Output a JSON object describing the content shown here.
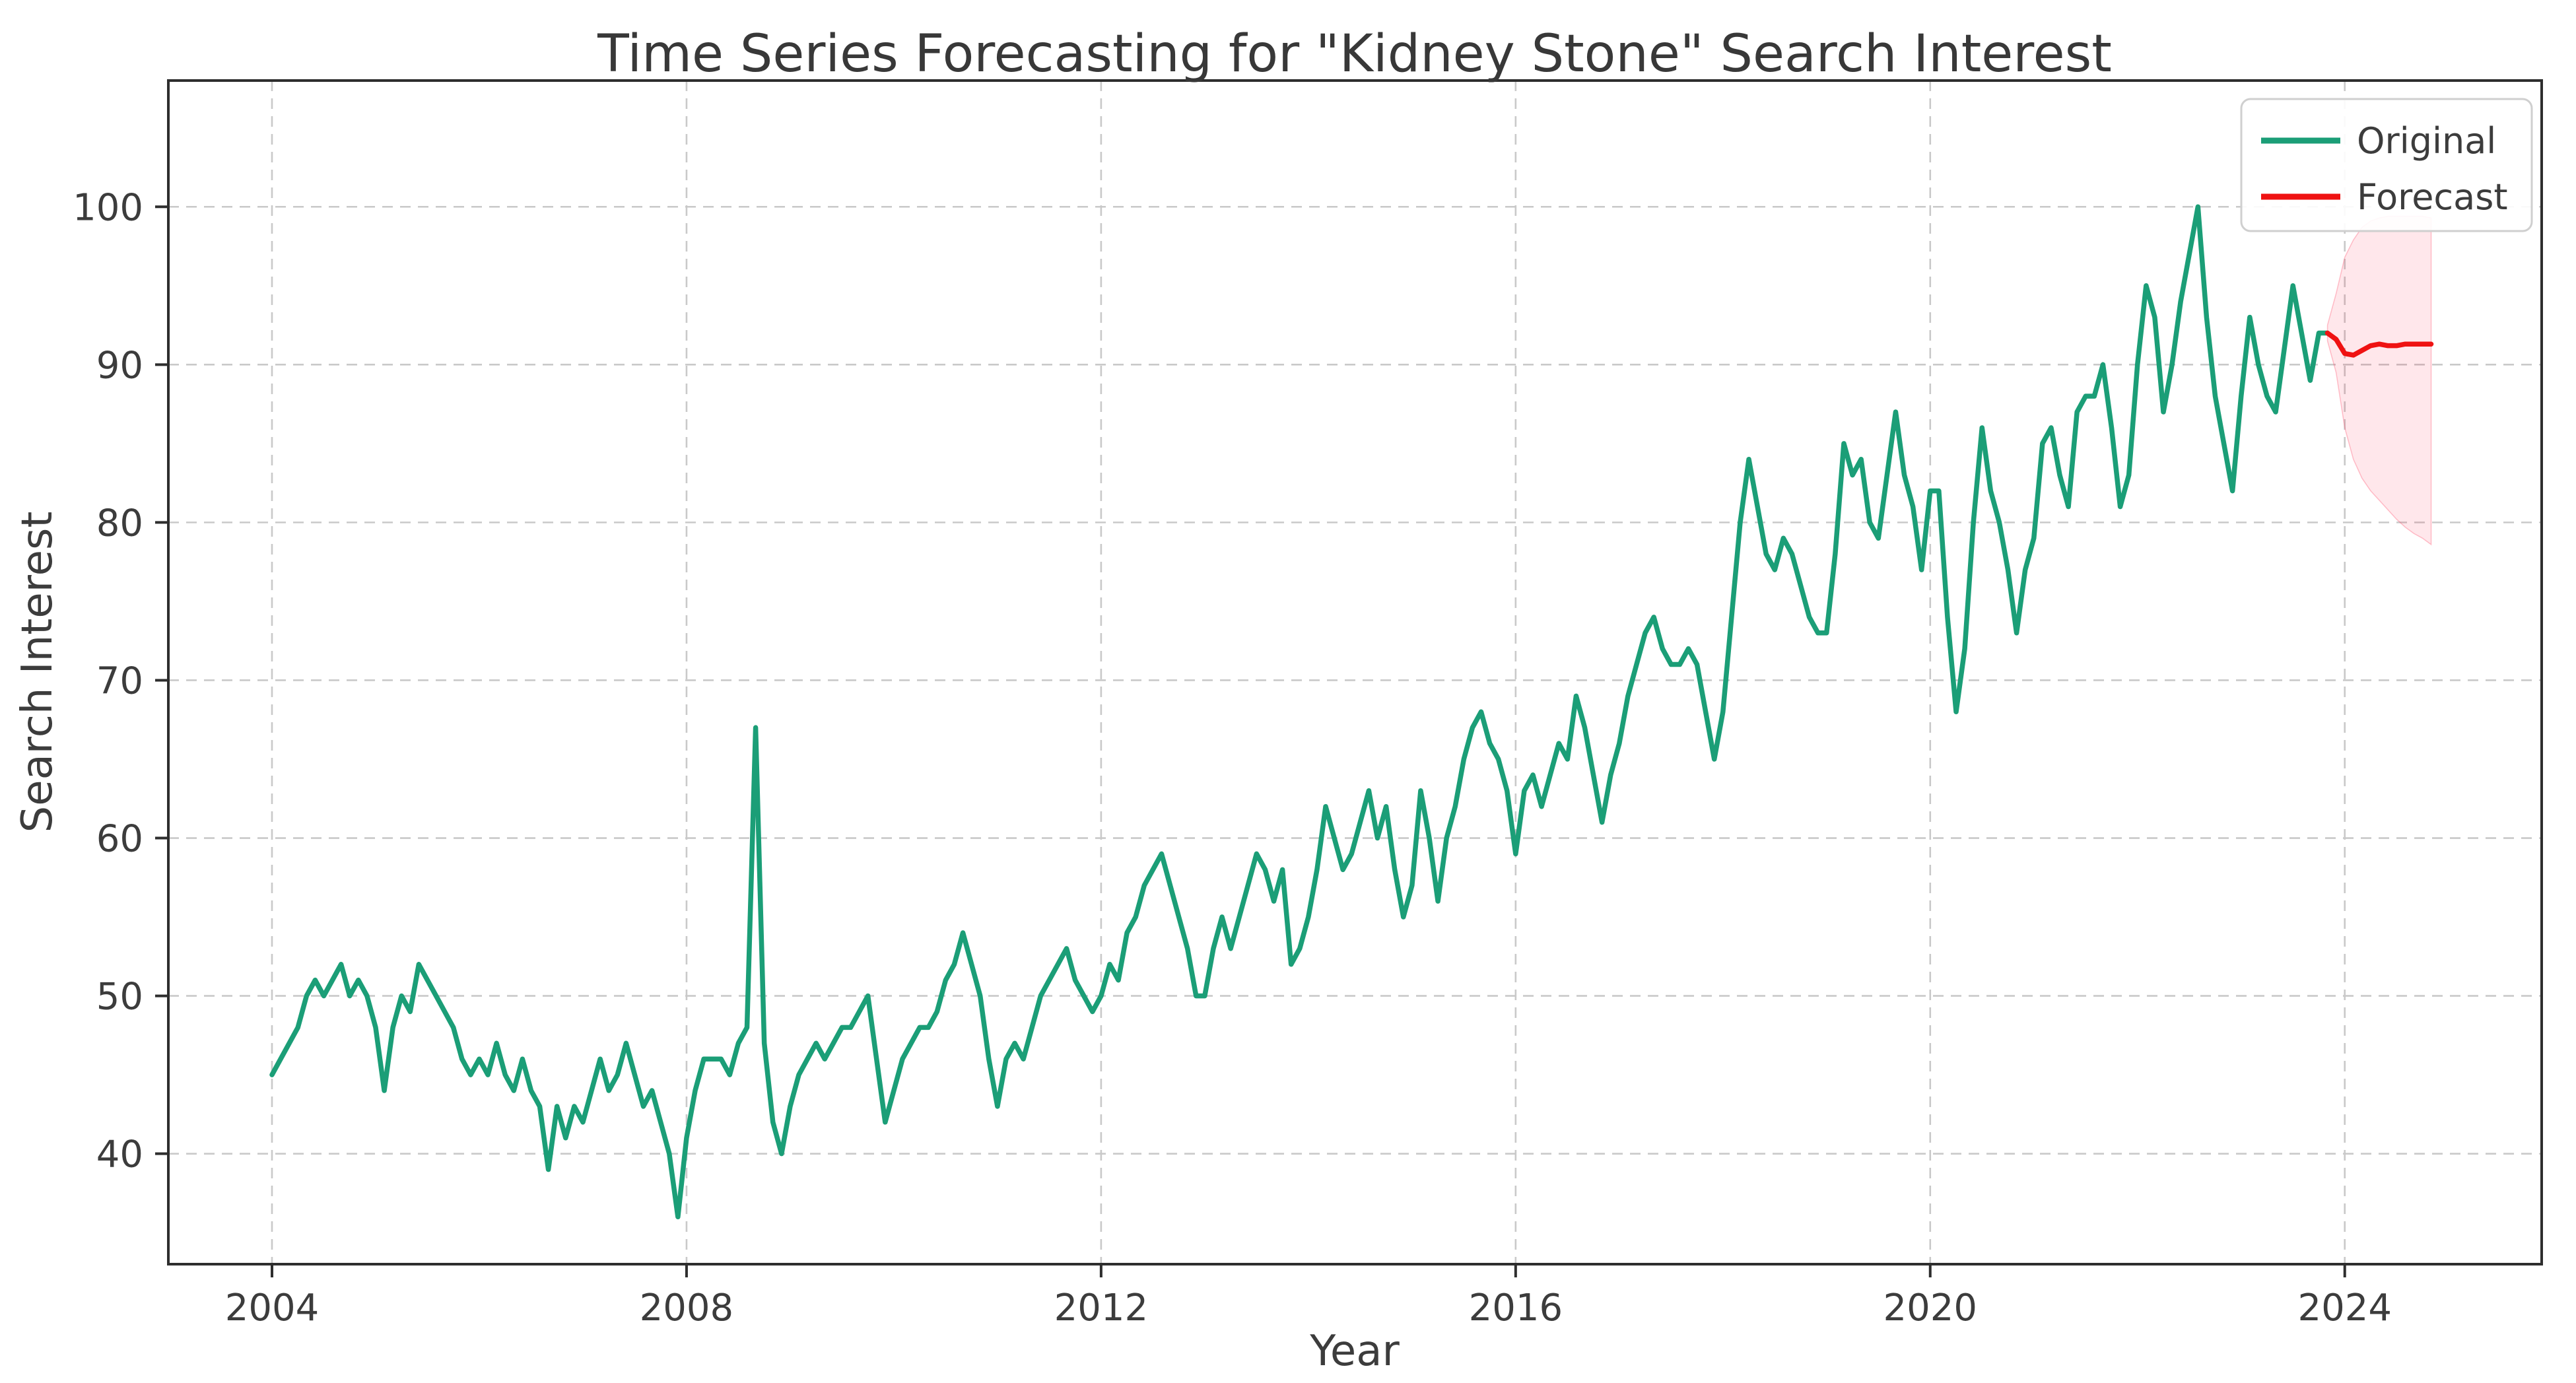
{
  "title": "Time Series Forecasting for \"Kidney Stone\" Search Interest",
  "axes": {
    "xlabel": "Year",
    "ylabel": "Search Interest",
    "x_ticks": [
      2004,
      2008,
      2012,
      2016,
      2020,
      2024
    ],
    "y_ticks": [
      40,
      50,
      60,
      70,
      80,
      90,
      100
    ]
  },
  "legend": {
    "items": [
      {
        "label": "Original",
        "color": "#1b9e77"
      },
      {
        "label": "Forecast",
        "color": "#ef1212"
      }
    ]
  },
  "colors": {
    "original_line": "#1b9e77",
    "forecast_line": "#ef1212",
    "confidence_band": "rgba(255,20,60,0.10)",
    "grid": "#c9c9c9",
    "text": "#3c3c3c",
    "spine": "#2e2e2e",
    "background": "#ffffff"
  },
  "chart_data": {
    "type": "line",
    "title": "Time Series Forecasting for \"Kidney Stone\" Search Interest",
    "xlabel": "Year",
    "ylabel": "Search Interest",
    "xlim": [
      2003.0,
      2025.9
    ],
    "ylim": [
      33,
      108
    ],
    "grid": true,
    "legend_position": "upper right",
    "x_unit": "month",
    "series": [
      {
        "name": "Original",
        "color": "#1b9e77",
        "start_year": 2004,
        "start_month": 1,
        "values": [
          45,
          46,
          47,
          48,
          50,
          51,
          50,
          51,
          52,
          50,
          51,
          50,
          48,
          44,
          48,
          50,
          49,
          52,
          51,
          50,
          49,
          48,
          46,
          45,
          46,
          45,
          47,
          45,
          44,
          46,
          44,
          43,
          39,
          43,
          41,
          43,
          42,
          44,
          46,
          44,
          45,
          47,
          45,
          43,
          44,
          42,
          40,
          36,
          41,
          44,
          46,
          46,
          46,
          45,
          47,
          48,
          67,
          47,
          42,
          40,
          43,
          45,
          46,
          47,
          46,
          47,
          48,
          48,
          49,
          50,
          46,
          42,
          44,
          46,
          47,
          48,
          48,
          49,
          51,
          52,
          54,
          52,
          50,
          46,
          43,
          46,
          47,
          46,
          48,
          50,
          51,
          52,
          53,
          51,
          50,
          49,
          50,
          52,
          51,
          54,
          55,
          57,
          58,
          59,
          57,
          55,
          53,
          50,
          50,
          53,
          55,
          53,
          55,
          57,
          59,
          58,
          56,
          58,
          52,
          53,
          55,
          58,
          62,
          60,
          58,
          59,
          61,
          63,
          60,
          62,
          58,
          55,
          57,
          63,
          60,
          56,
          60,
          62,
          65,
          67,
          68,
          66,
          65,
          63,
          59,
          63,
          64,
          62,
          64,
          66,
          65,
          69,
          67,
          64,
          61,
          64,
          66,
          69,
          71,
          73,
          74,
          72,
          71,
          71,
          72,
          71,
          68,
          65,
          68,
          74,
          80,
          84,
          81,
          78,
          77,
          79,
          78,
          76,
          74,
          73,
          73,
          78,
          85,
          83,
          84,
          80,
          79,
          83,
          87,
          83,
          81,
          77,
          82,
          82,
          74,
          68,
          72,
          80,
          86,
          82,
          80,
          77,
          73,
          77,
          79,
          85,
          86,
          83,
          81,
          87,
          88,
          88,
          90,
          86,
          81,
          83,
          90,
          95,
          93,
          87,
          90,
          94,
          97,
          100,
          93,
          88,
          85,
          82,
          88,
          93,
          90,
          88,
          87,
          91,
          95,
          92,
          89,
          92,
          92
        ]
      },
      {
        "name": "Forecast",
        "color": "#ef1212",
        "start_year": 2023,
        "start_month": 11,
        "values": [
          92.0,
          91.6,
          90.7,
          90.6,
          90.9,
          91.2,
          91.3,
          91.2,
          91.2,
          91.3,
          91.3,
          91.3,
          91.3
        ]
      }
    ],
    "confidence_band": {
      "series": "Forecast",
      "start_year": 2023,
      "start_month": 11,
      "color": "rgba(255,20,60,0.10)",
      "lower": [
        91.5,
        89.5,
        86.0,
        84.0,
        82.8,
        82.0,
        81.4,
        80.8,
        80.2,
        79.7,
        79.3,
        79.0,
        78.6
      ],
      "upper": [
        92.5,
        94.5,
        96.8,
        97.9,
        98.7,
        99.1,
        99.3,
        99.4,
        99.4,
        99.4,
        99.4,
        99.4,
        99.3
      ]
    }
  }
}
